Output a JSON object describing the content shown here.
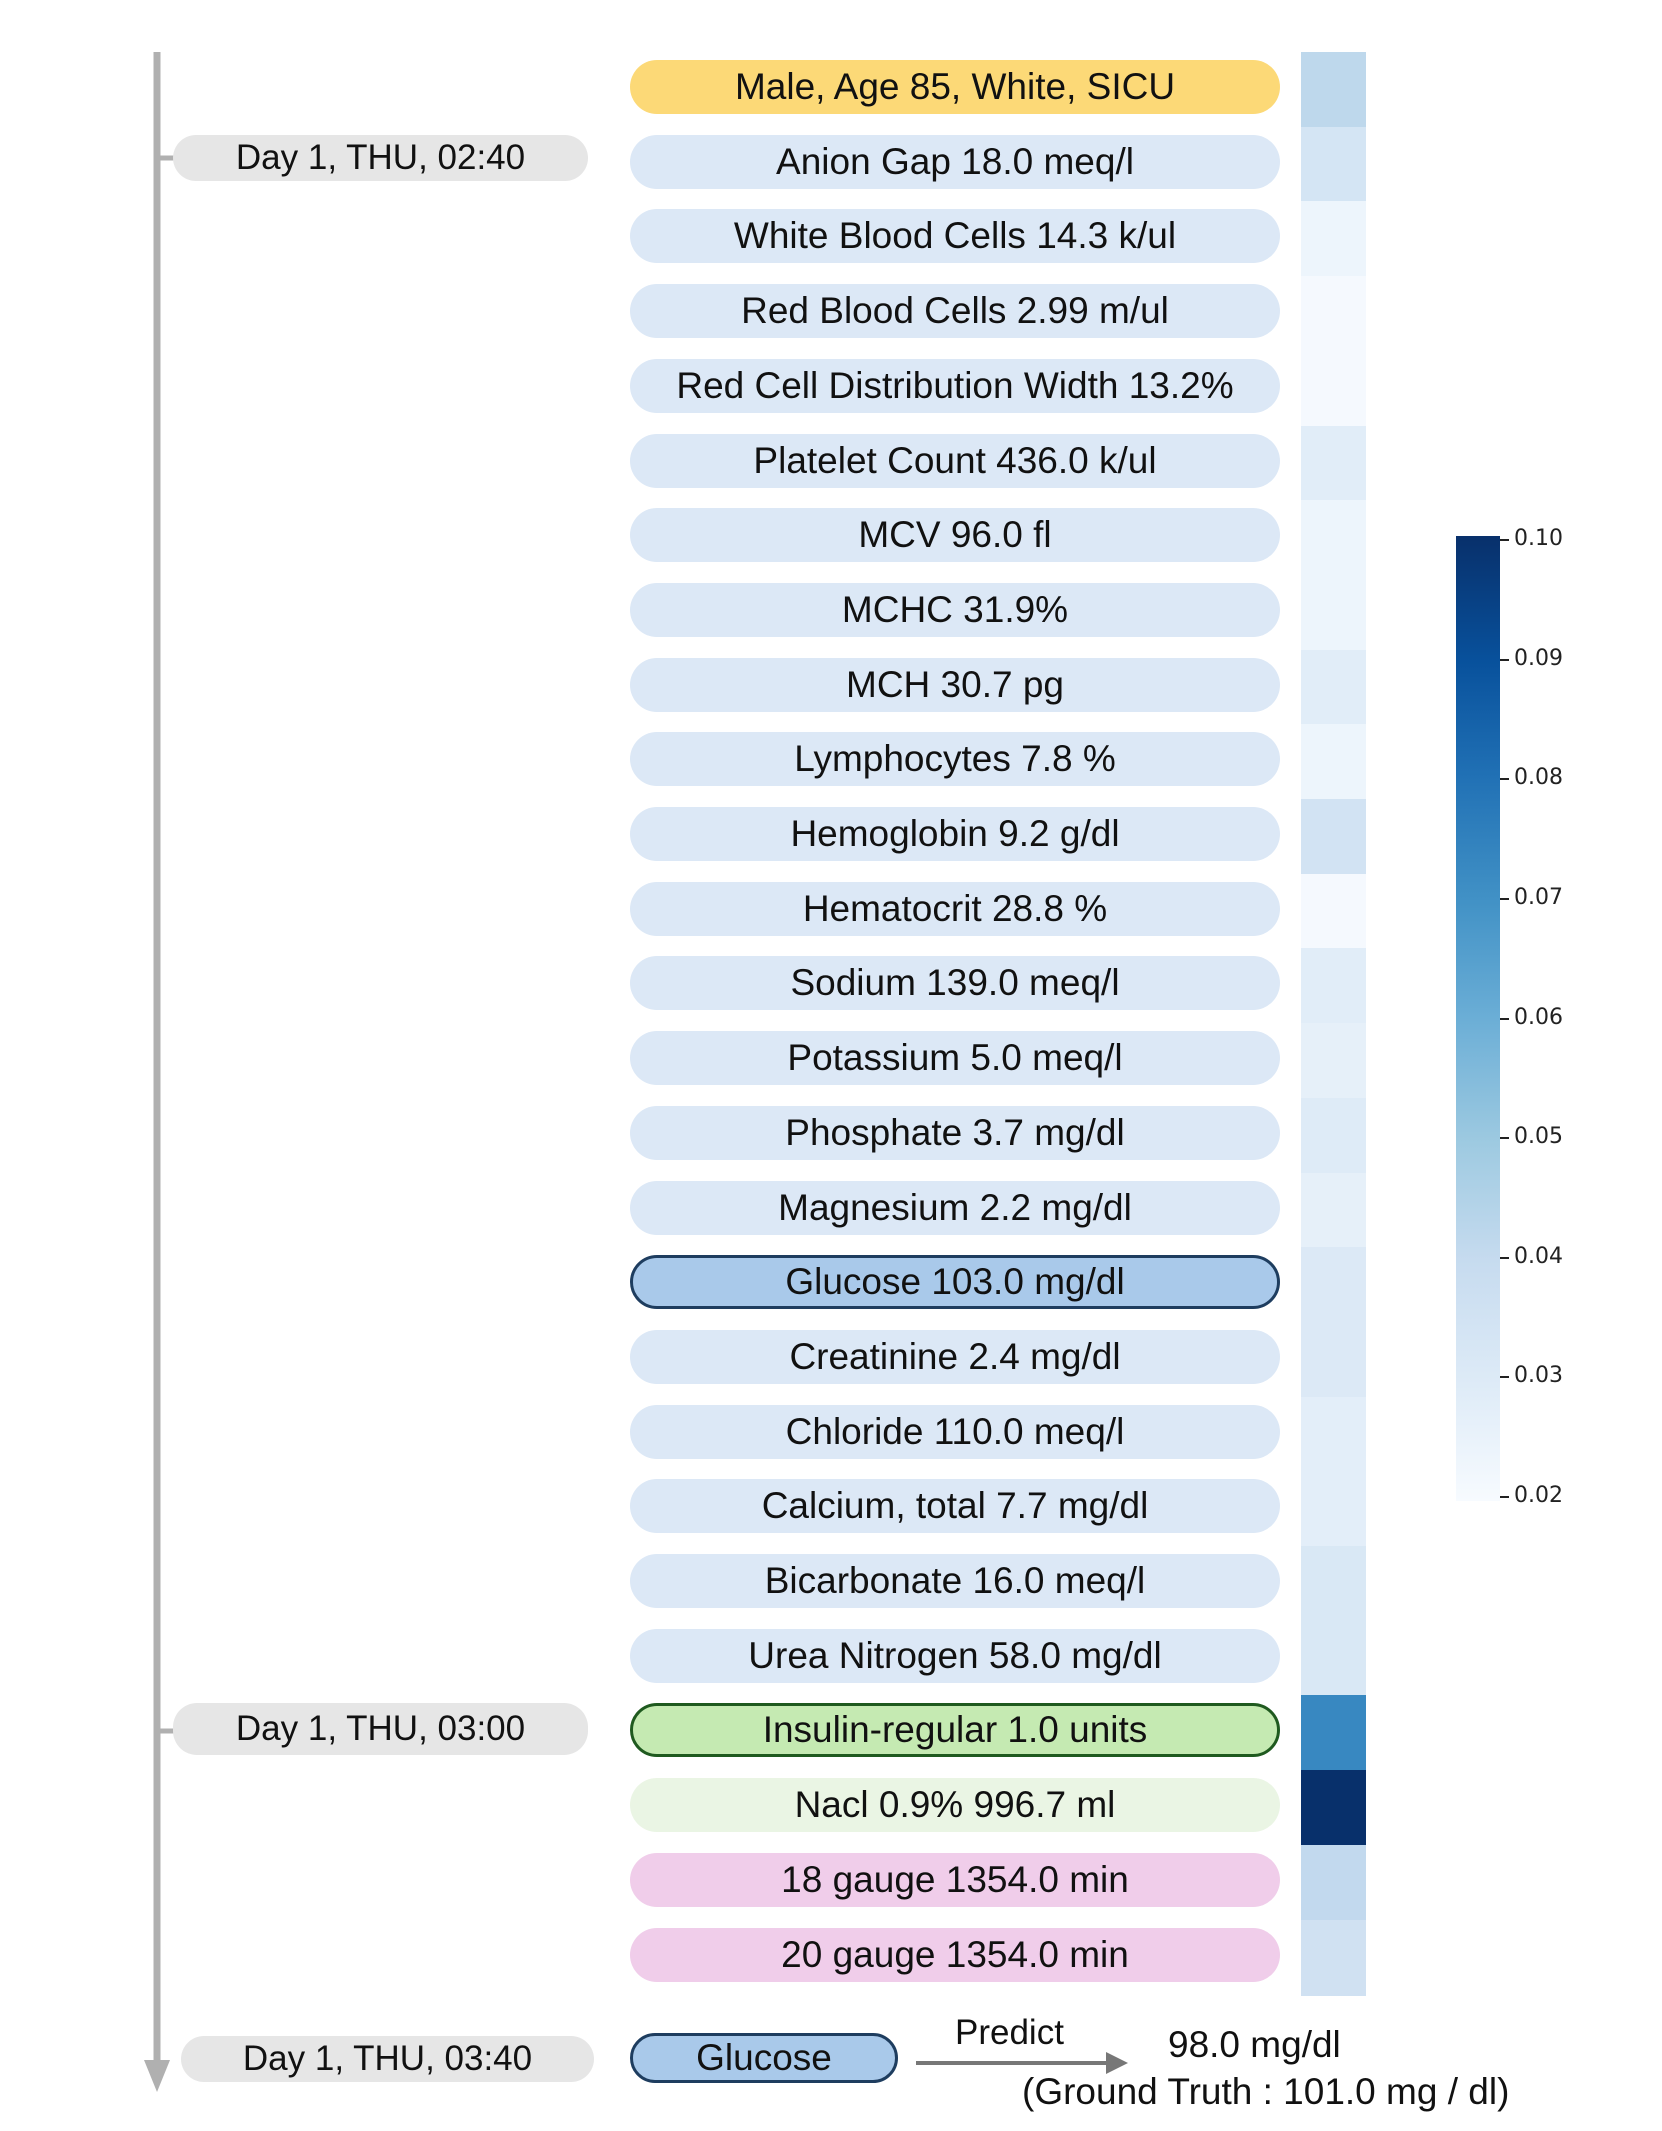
{
  "timeline": {
    "timestamps": [
      "Day 1, THU, 02:40",
      "Day 1, THU, 03:00",
      "Day 1, THU, 03:40"
    ]
  },
  "events": [
    {
      "label": "Male, Age 85, White, SICU",
      "category": "demographic",
      "attention": 0.042
    },
    {
      "label": "Anion Gap 18.0 meq/l",
      "category": "lab",
      "attention": 0.034
    },
    {
      "label": "White Blood Cells 14.3 k/ul",
      "category": "lab",
      "attention": 0.024
    },
    {
      "label": "Red Blood Cells 2.99 m/ul",
      "category": "lab",
      "attention": 0.021
    },
    {
      "label": "Red Cell Distribution Width 13.2%",
      "category": "lab",
      "attention": 0.021
    },
    {
      "label": "Platelet Count 436.0 k/ul",
      "category": "lab",
      "attention": 0.029
    },
    {
      "label": "MCV 96.0 fl",
      "category": "lab",
      "attention": 0.024
    },
    {
      "label": "MCHC 31.9%",
      "category": "lab",
      "attention": 0.024
    },
    {
      "label": "MCH 30.7 pg",
      "category": "lab",
      "attention": 0.029
    },
    {
      "label": "Lymphocytes 7.8 %",
      "category": "lab",
      "attention": 0.024
    },
    {
      "label": "Hemoglobin 9.2 g/dl",
      "category": "lab",
      "attention": 0.035
    },
    {
      "label": "Hematocrit 28.8 %",
      "category": "lab",
      "attention": 0.021
    },
    {
      "label": "Sodium 139.0 meq/l",
      "category": "lab",
      "attention": 0.029
    },
    {
      "label": "Potassium 5.0 meq/l",
      "category": "lab",
      "attention": 0.027
    },
    {
      "label": "Phosphate 3.7 mg/dl",
      "category": "lab",
      "attention": 0.03
    },
    {
      "label": "Magnesium 2.2 mg/dl",
      "category": "lab",
      "attention": 0.027
    },
    {
      "label": "Glucose 103.0 mg/dl",
      "category": "lab-target",
      "attention": 0.031
    },
    {
      "label": "Creatinine 2.4 mg/dl",
      "category": "lab",
      "attention": 0.031
    },
    {
      "label": "Chloride 110.0 meq/l",
      "category": "lab",
      "attention": 0.028
    },
    {
      "label": "Calcium, total 7.7 mg/dl",
      "category": "lab",
      "attention": 0.028
    },
    {
      "label": "Bicarbonate 16.0 meq/l",
      "category": "lab",
      "attention": 0.032
    },
    {
      "label": "Urea Nitrogen 58.0 mg/dl",
      "category": "lab",
      "attention": 0.032
    },
    {
      "label": "Insulin-regular 1.0 units",
      "category": "medication-highlight",
      "attention": 0.073
    },
    {
      "label": "Nacl 0.9% 996.7 ml",
      "category": "medication",
      "attention": 0.1
    },
    {
      "label": "18 gauge 1354.0 min",
      "category": "procedure",
      "attention": 0.041
    },
    {
      "label": "20 gauge 1354.0 min",
      "category": "procedure",
      "attention": 0.036
    }
  ],
  "prediction": {
    "target_label": "Glucose",
    "arrow_label": "Predict",
    "value": "98.0 mg/dl",
    "ground_truth": "(Ground Truth : 101.0 mg / dl)"
  },
  "colorbar": {
    "min": 0.02,
    "max": 0.1,
    "ticks": [
      "0.10",
      "0.09",
      "0.08",
      "0.07",
      "0.06",
      "0.05",
      "0.04",
      "0.03",
      "0.02"
    ],
    "colormap": "Blues"
  },
  "colors": {
    "demographic": "#fcd977",
    "lab": "#dce8f6",
    "lab-target": "#a9c9ea",
    "medication-highlight": "#c5eab2",
    "medication": "#eaf5e4",
    "procedure": "#f0cdea",
    "timestamp": "#e6e6e6",
    "timeline": "#b0b0b0"
  }
}
